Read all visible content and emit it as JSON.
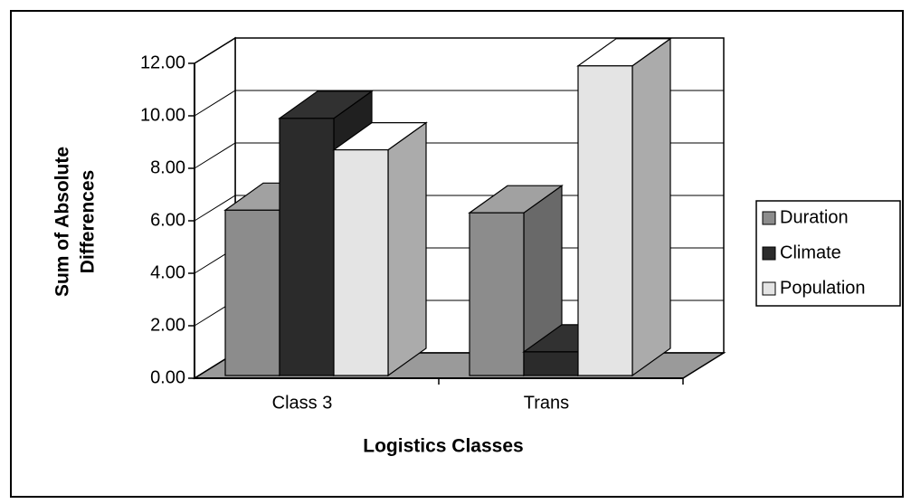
{
  "chart_data": {
    "type": "bar3d",
    "xlabel": "Logistics Classes",
    "ylabel": [
      "Sum of Absolute",
      "Differences"
    ],
    "categories": [
      "Class 3",
      "Trans"
    ],
    "series": [
      {
        "name": "Duration",
        "color": "#8c8c8c",
        "values": [
          6.3,
          6.2
        ]
      },
      {
        "name": "Climate",
        "color": "#2b2b2b",
        "values": [
          9.8,
          0.9
        ]
      },
      {
        "name": "Population",
        "color": "#e4e4e4",
        "values": [
          8.6,
          11.8
        ]
      }
    ],
    "ylim": [
      0,
      12
    ],
    "yticks": [
      {
        "value": 0,
        "label": "0.00"
      },
      {
        "value": 2,
        "label": "2.00"
      },
      {
        "value": 4,
        "label": "4.00"
      },
      {
        "value": 6,
        "label": "6.00"
      },
      {
        "value": 8,
        "label": "8.00"
      },
      {
        "value": 10,
        "label": "10.00"
      },
      {
        "value": 12,
        "label": "12.00"
      }
    ],
    "grid": true,
    "legend": "right"
  }
}
